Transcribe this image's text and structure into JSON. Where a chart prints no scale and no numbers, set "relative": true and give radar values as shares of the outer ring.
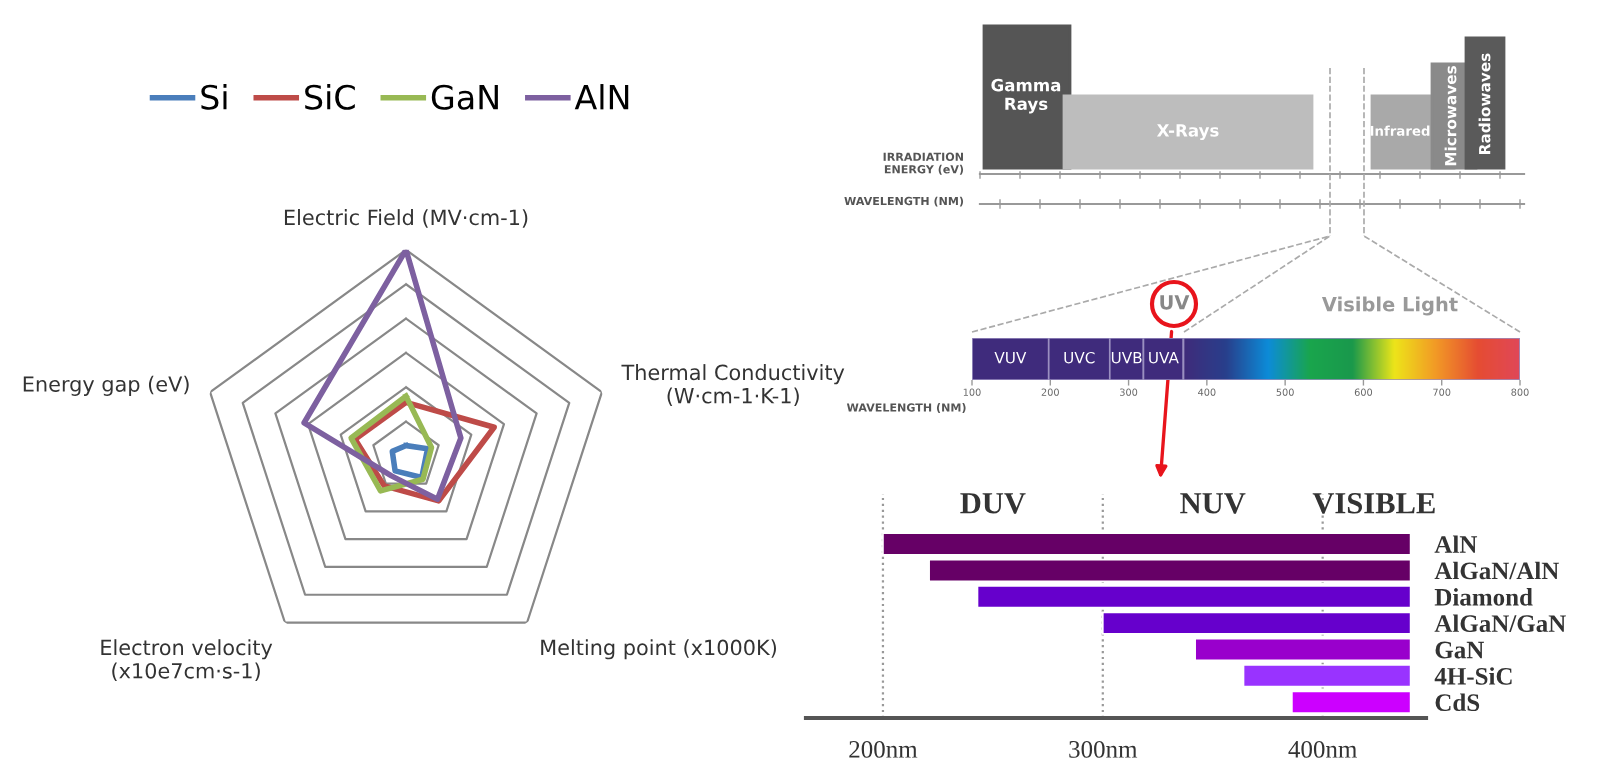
{
  "chart_data": [
    {
      "type": "radar",
      "relative": true,
      "legend": "top",
      "grid": true,
      "categories": [
        "Electric Field (MV·cm-1)",
        "Thermal Conductivity\n(W·cm-1·K-1)",
        "Melting point (x1000K)",
        "Electron velocity\n(x10e7cm·s-1)",
        "Energy gap (eV)"
      ],
      "series": [
        {
          "name": "Si",
          "color": "#4a7ebb",
          "values": [
            0.05,
            0.11,
            0.13,
            0.09,
            0.07
          ]
        },
        {
          "name": "SiC",
          "color": "#be4b48",
          "values": [
            0.26,
            0.45,
            0.27,
            0.18,
            0.26
          ]
        },
        {
          "name": "GaN",
          "color": "#98b954",
          "values": [
            0.29,
            0.13,
            0.14,
            0.21,
            0.28
          ]
        },
        {
          "name": "AlN",
          "color": "#7d60a0",
          "values": [
            1.0,
            0.28,
            0.26,
            0.12,
            0.52
          ]
        }
      ]
    },
    {
      "type": "bar",
      "orientation": "horizontal",
      "stacked": true,
      "xlabel": "WAVELENGTH (NM)",
      "xlim": [
        100,
        800
      ],
      "xticks": [
        100,
        200,
        300,
        400,
        500,
        600,
        700,
        800
      ],
      "categories": [
        null
      ],
      "series": [
        {
          "name": "VUV",
          "color": "#3f2b7c",
          "base": [
            100
          ],
          "values": [
            98
          ]
        },
        {
          "name": "UVC",
          "color": "#3f2b7c",
          "base": [
            198
          ],
          "values": [
            78
          ]
        },
        {
          "name": "UVB",
          "color": "#3f2b7c",
          "base": [
            276
          ],
          "values": [
            43
          ]
        },
        {
          "name": "UVA",
          "color": "#3f2b7c",
          "base": [
            319
          ],
          "values": [
            51
          ]
        },
        {
          "base": [
            370
          ],
          "values": [
            430
          ]
        }
      ],
      "annotations": [
        "Gamma\nRays",
        "X-Rays",
        "Infrared",
        "Microwaves",
        "Radiowaves",
        "IRRADIATION\nENERGY (eV)",
        "WAVELENGTH (NM)",
        "UV",
        "Visible Light"
      ]
    },
    {
      "type": "bar",
      "orientation": "horizontal",
      "grid": "x",
      "categories": [
        "AlN",
        "AlGaN/AlN",
        "Diamond",
        "AlGaN/GaN",
        "GaN",
        "4H-SiC",
        "CdS"
      ],
      "base": [
        200,
        221,
        243,
        300,
        342,
        364,
        386
      ],
      "values": [
        240,
        219,
        197,
        140,
        98,
        76,
        54
      ],
      "colors": [
        "#660066",
        "#660066",
        "#6600cc",
        "#6600cc",
        "#9900cc",
        "#9933ff",
        "#cc00ff"
      ],
      "xlim": [
        165,
        447
      ],
      "xticks": [
        {
          "value": 200,
          "label": "200nm"
        },
        {
          "value": 300,
          "label": "300nm"
        },
        {
          "value": 400,
          "label": "400nm"
        }
      ],
      "annotations": [
        "DUV",
        "NUV",
        "VISIBLE"
      ]
    }
  ]
}
